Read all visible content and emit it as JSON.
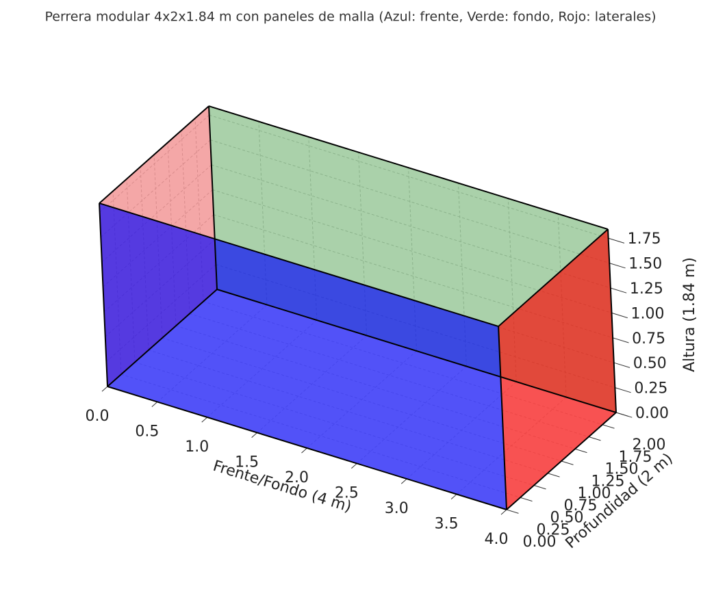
{
  "chart_data": {
    "type": "box3d",
    "title": "Perrera modular 4x2x1.84 m con paneles de malla (Azul: frente, Verde: fondo, Rojo: laterales)",
    "xlabel": "Frente/Fondo (4 m)",
    "ylabel": "Profundidad (2 m)",
    "zlabel": "Altura (1.84 m)",
    "values": [
      4,
      2,
      1.84
    ],
    "colors": {
      "front": "#0000ff",
      "back": "#008000",
      "sides": "#ff0000"
    },
    "xlim": [
      0,
      4
    ],
    "ylim": [
      0,
      2
    ],
    "zlim": [
      0,
      1.84
    ],
    "xticks": [
      {
        "value": 0,
        "label": "0.0"
      },
      0.5,
      {
        "value": 1,
        "label": "1.0"
      },
      1.5,
      {
        "value": 2,
        "label": "2.0"
      },
      2.5,
      {
        "value": 3,
        "label": "3.0"
      },
      3.5,
      {
        "value": 4,
        "label": "4.0"
      }
    ],
    "yticks": [
      {
        "value": 0,
        "label": "0.00"
      },
      0.25,
      {
        "value": 0.5,
        "label": "0.50"
      },
      0.75,
      {
        "value": 1,
        "label": "1.00"
      },
      1.25,
      {
        "value": 1.5,
        "label": "1.50"
      },
      1.75,
      {
        "value": 2,
        "label": "2.00"
      }
    ],
    "zticks": [
      {
        "value": 0,
        "label": "0.00"
      },
      0.25,
      {
        "value": 0.5,
        "label": "0.50"
      },
      0.75,
      {
        "value": 1,
        "label": "1.00"
      },
      1.25,
      {
        "value": 1.5,
        "label": "1.50"
      },
      1.75
    ],
    "grid": true
  }
}
